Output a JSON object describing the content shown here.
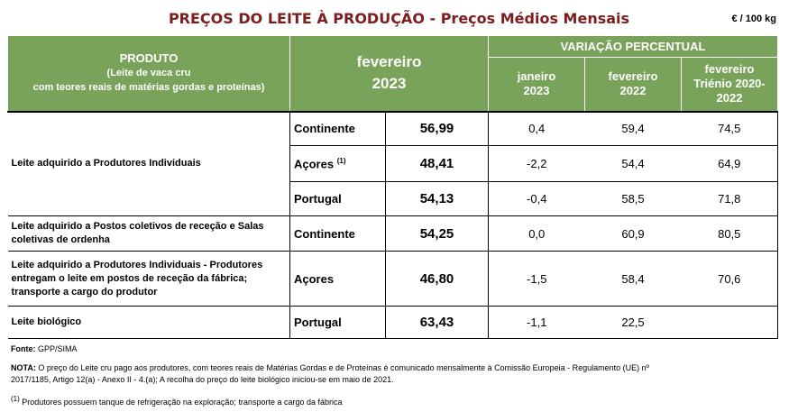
{
  "title": "PREÇOS DO LEITE À PRODUÇÃO",
  "subtitle": " - Preços Médios Mensais",
  "unit": "€ / 100 kg",
  "header": {
    "produto": "PRODUTO",
    "produto_sub1": "(Leite de vaca cru",
    "produto_sub2": "com teores reais de matérias gordas e proteínas)",
    "price_col_1": "fevereiro",
    "price_col_2": "2023",
    "variacao": "VARIAÇÃO PERCENTUAL",
    "var_cols": [
      {
        "l1": "janeiro",
        "l2": "2023"
      },
      {
        "l1": "fevereiro",
        "l2": "2022"
      },
      {
        "l1": "fevereiro",
        "l2": "Triénio 2020-",
        "l3": "2022"
      }
    ]
  },
  "rows": [
    {
      "product": "Leite adquirido a Produtores Individuais",
      "region": "Continente",
      "price": "56,99",
      "v1": "0,4",
      "v2": "59,4",
      "v3": "74,5"
    },
    {
      "product": "",
      "region": "Açores",
      "region_note": "(1)",
      "price": "48,41",
      "v1": "-2,2",
      "v2": "54,4",
      "v3": "64,9"
    },
    {
      "product": "",
      "region": "Portugal",
      "price": "54,13",
      "v1": "-0,4",
      "v2": "58,5",
      "v3": "71,8"
    },
    {
      "product": "Leite adquirido a Postos coletivos de receção e Salas coletivas de ordenha",
      "region": "Continente",
      "price": "54,25",
      "v1": "0,0",
      "v2": "60,9",
      "v3": "80,5"
    },
    {
      "product": "Leite adquirido a Produtores Individuais - Produtores entregam o leite em postos de receção da fábrica; transporte a cargo do produtor",
      "region": "Açores",
      "price": "46,80",
      "v1": "-1,5",
      "v2": "58,4",
      "v3": "70,6"
    },
    {
      "product": "Leite biológico",
      "region": "Portugal",
      "price": "63,43",
      "v1": "-1,1",
      "v2": "22,5",
      "v3": ""
    }
  ],
  "footer": {
    "fonte_label": "Fonte:",
    "fonte": " GPP/SIMA",
    "nota_label": "NOTA:",
    "nota_line1": " O preço do Leite cru pago aos produtores, com teores reais de Matérias Gordas e de Proteínas é comunicado mensalmente à Comissão Europeia - Regulamento (UE) nº",
    "nota_line2": "2017/1185, Artigo 12(a) - Anexo II - 4.(a); A recolha do preço do leite biológico iniciou-se em maio de 2021.",
    "note1_mark": "(1)",
    "note1": " Produtores possuem tanque de refrigeração na exploração; transporte a cargo da fábrica"
  },
  "colors": {
    "title": "#7b1e1e",
    "header_bg": "#79a25a",
    "header_text": "#ffffff"
  }
}
